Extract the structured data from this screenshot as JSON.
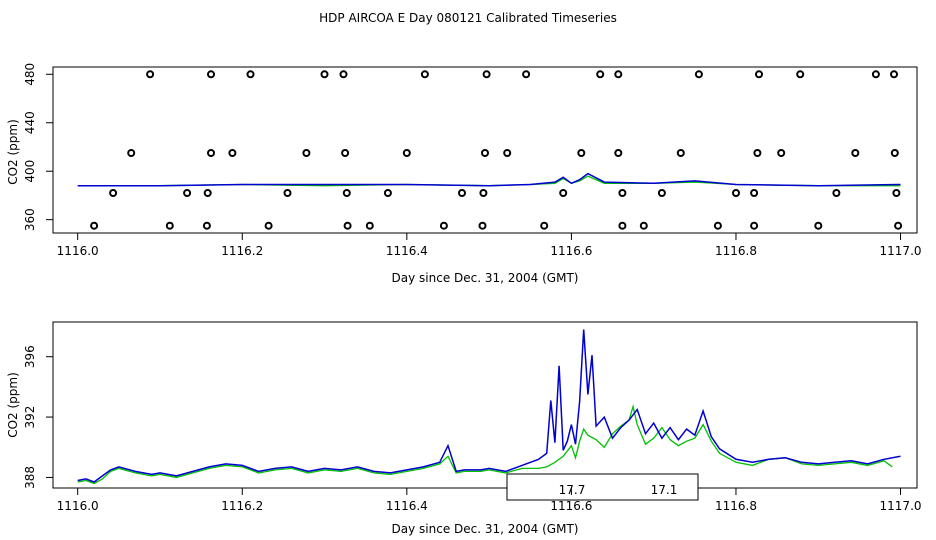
{
  "title": "HDP AIRCOA E  Day 080121  Calibrated Timeseries",
  "legend": {
    "labels": [
      "17.7",
      "17.1"
    ]
  },
  "colors": {
    "green": "#00c000",
    "blue": "#0000d0"
  },
  "chart_data": [
    {
      "type": "scatter",
      "xlabel": "Day since Dec. 31, 2004 (GMT)",
      "ylabel": "CO2 (ppm)",
      "xlim": [
        1115.97,
        1117.02
      ],
      "ylim": [
        349,
        486
      ],
      "xticks": [
        "1116.0",
        "1116.2",
        "1116.4",
        "1116.6",
        "1116.8",
        "1117.0"
      ],
      "yticks": [
        "360",
        "400",
        "440",
        "480"
      ],
      "points": {
        "480": [
          1116.088,
          1116.162,
          1116.21,
          1116.3,
          1116.323,
          1116.422,
          1116.497,
          1116.545,
          1116.635,
          1116.657,
          1116.755,
          1116.828,
          1116.878,
          1116.97,
          1116.992
        ],
        "415": [
          1116.065,
          1116.162,
          1116.188,
          1116.278,
          1116.325,
          1116.4,
          1116.495,
          1116.522,
          1116.612,
          1116.657,
          1116.733,
          1116.826,
          1116.855,
          1116.945,
          1116.993
        ],
        "382": [
          1116.043,
          1116.133,
          1116.158,
          1116.255,
          1116.327,
          1116.377,
          1116.467,
          1116.493,
          1116.59,
          1116.662,
          1116.71,
          1116.8,
          1116.822,
          1116.922,
          1116.995
        ],
        "355": [
          1116.02,
          1116.112,
          1116.157,
          1116.232,
          1116.328,
          1116.355,
          1116.445,
          1116.492,
          1116.567,
          1116.662,
          1116.688,
          1116.778,
          1116.822,
          1116.9,
          1116.997
        ]
      },
      "series": [
        {
          "x": [
            1116.0,
            1116.1,
            1116.2,
            1116.3,
            1116.4,
            1116.5,
            1116.55,
            1116.58,
            1116.59,
            1116.6,
            1116.61,
            1116.62,
            1116.64,
            1116.7,
            1116.75,
            1116.8,
            1116.9,
            1117.0
          ],
          "y": [
            388,
            388,
            389,
            388,
            389,
            388,
            389,
            390,
            394,
            390,
            392,
            396,
            390,
            390,
            391,
            389,
            388,
            388
          ]
        },
        {
          "x": [
            1116.0,
            1116.1,
            1116.2,
            1116.3,
            1116.4,
            1116.5,
            1116.55,
            1116.58,
            1116.59,
            1116.6,
            1116.61,
            1116.62,
            1116.64,
            1116.7,
            1116.75,
            1116.8,
            1116.9,
            1117.0
          ],
          "y": [
            388,
            388,
            389,
            389,
            389,
            388,
            389,
            391,
            395,
            390,
            393,
            398,
            391,
            390,
            392,
            389,
            388,
            389
          ]
        }
      ]
    },
    {
      "type": "line",
      "xlabel": "Day since Dec. 31, 2004 (GMT)",
      "ylabel": "CO2 (ppm)",
      "xlim": [
        1115.97,
        1117.02
      ],
      "ylim": [
        387.3,
        398.3
      ],
      "xticks": [
        "1116.0",
        "1116.2",
        "1116.4",
        "1116.6",
        "1116.8",
        "1117.0"
      ],
      "yticks": [
        "388",
        "392",
        "396"
      ],
      "series": [
        {
          "x": [
            1116.0,
            1116.01,
            1116.02,
            1116.03,
            1116.04,
            1116.05,
            1116.07,
            1116.09,
            1116.1,
            1116.12,
            1116.14,
            1116.16,
            1116.18,
            1116.2,
            1116.22,
            1116.24,
            1116.26,
            1116.28,
            1116.3,
            1116.32,
            1116.34,
            1116.36,
            1116.38,
            1116.4,
            1116.42,
            1116.44,
            1116.45,
            1116.46,
            1116.47,
            1116.49,
            1116.5,
            1116.52,
            1116.54,
            1116.56,
            1116.57,
            1116.58,
            1116.59,
            1116.6,
            1116.605,
            1116.61,
            1116.615,
            1116.62,
            1116.63,
            1116.64,
            1116.65,
            1116.66,
            1116.67,
            1116.675,
            1116.68,
            1116.69,
            1116.7,
            1116.71,
            1116.72,
            1116.73,
            1116.74,
            1116.75,
            1116.76,
            1116.77,
            1116.78,
            1116.8,
            1116.82,
            1116.84,
            1116.86,
            1116.88,
            1116.9,
            1116.92,
            1116.94,
            1116.96,
            1116.98,
            1116.99
          ],
          "y": [
            387.7,
            387.8,
            387.6,
            387.9,
            388.4,
            388.6,
            388.3,
            388.1,
            388.2,
            388.0,
            388.3,
            388.6,
            388.8,
            388.7,
            388.3,
            388.5,
            388.6,
            388.3,
            388.5,
            388.4,
            388.6,
            388.3,
            388.2,
            388.4,
            388.6,
            388.9,
            389.4,
            388.3,
            388.4,
            388.4,
            388.5,
            388.3,
            388.6,
            388.6,
            388.7,
            389.0,
            389.4,
            390.1,
            389.3,
            390.4,
            391.2,
            390.8,
            390.5,
            390.0,
            390.9,
            391.4,
            391.8,
            392.7,
            391.5,
            390.2,
            390.6,
            391.3,
            390.5,
            390.1,
            390.4,
            390.6,
            391.5,
            390.4,
            389.6,
            389.0,
            388.8,
            389.2,
            389.3,
            388.9,
            388.8,
            388.9,
            389.0,
            388.8,
            389.1,
            388.7
          ]
        },
        {
          "x": [
            1116.0,
            1116.01,
            1116.02,
            1116.03,
            1116.04,
            1116.05,
            1116.07,
            1116.09,
            1116.1,
            1116.12,
            1116.14,
            1116.16,
            1116.18,
            1116.2,
            1116.22,
            1116.24,
            1116.26,
            1116.28,
            1116.3,
            1116.32,
            1116.34,
            1116.36,
            1116.38,
            1116.4,
            1116.42,
            1116.44,
            1116.45,
            1116.46,
            1116.47,
            1116.49,
            1116.5,
            1116.52,
            1116.54,
            1116.56,
            1116.57,
            1116.575,
            1116.58,
            1116.585,
            1116.59,
            1116.595,
            1116.6,
            1116.605,
            1116.61,
            1116.615,
            1116.62,
            1116.625,
            1116.63,
            1116.64,
            1116.65,
            1116.66,
            1116.67,
            1116.68,
            1116.69,
            1116.7,
            1116.71,
            1116.72,
            1116.73,
            1116.74,
            1116.75,
            1116.76,
            1116.77,
            1116.78,
            1116.8,
            1116.82,
            1116.84,
            1116.86,
            1116.88,
            1116.9,
            1116.92,
            1116.94,
            1116.96,
            1116.98,
            1117.0
          ],
          "y": [
            387.8,
            387.9,
            387.7,
            388.1,
            388.5,
            388.7,
            388.4,
            388.2,
            388.3,
            388.1,
            388.4,
            388.7,
            388.9,
            388.8,
            388.4,
            388.6,
            388.7,
            388.4,
            388.6,
            388.5,
            388.7,
            388.4,
            388.3,
            388.5,
            388.7,
            389.0,
            390.1,
            388.4,
            388.5,
            388.5,
            388.6,
            388.4,
            388.8,
            389.2,
            389.6,
            393.1,
            390.3,
            395.4,
            389.8,
            390.4,
            391.5,
            390.2,
            393.0,
            397.8,
            393.5,
            396.1,
            391.4,
            392.0,
            390.6,
            391.3,
            391.8,
            392.5,
            390.9,
            391.6,
            390.6,
            391.3,
            390.5,
            391.2,
            390.8,
            392.4,
            390.7,
            389.9,
            389.2,
            389.0,
            389.2,
            389.3,
            389.0,
            388.9,
            389.0,
            389.1,
            388.9,
            389.2,
            389.4
          ]
        }
      ]
    }
  ]
}
